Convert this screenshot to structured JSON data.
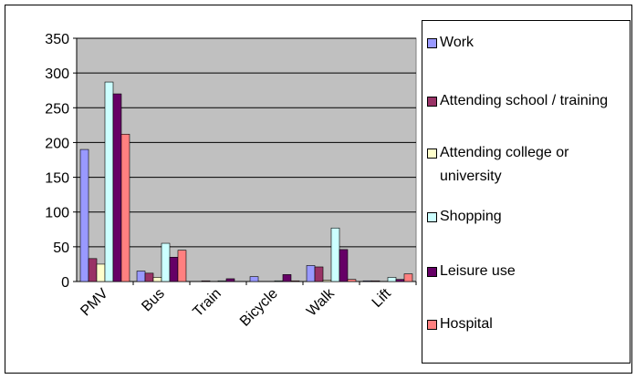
{
  "chart_data": {
    "type": "bar",
    "categories": [
      "PMV",
      "Bus",
      "Train",
      "Bicycle",
      "Walk",
      "Lift"
    ],
    "series": [
      {
        "name": "Work",
        "color": "#9999ff",
        "values": [
          190,
          15,
          0,
          7,
          23,
          1
        ]
      },
      {
        "name": "Attending school / training",
        "color": "#993366",
        "values": [
          33,
          12,
          1,
          0,
          21,
          1
        ]
      },
      {
        "name": "Attending college or university",
        "color": "#ffffcc",
        "values": [
          25,
          6,
          0,
          0,
          2,
          0
        ]
      },
      {
        "name": "Shopping",
        "color": "#ccffff",
        "values": [
          287,
          55,
          1,
          1,
          77,
          6
        ]
      },
      {
        "name": "Leisure use",
        "color": "#660066",
        "values": [
          270,
          35,
          4,
          10,
          46,
          3
        ]
      },
      {
        "name": "Hospital",
        "color": "#ff8080",
        "values": [
          212,
          45,
          0,
          1,
          3,
          11
        ]
      }
    ],
    "ylim": [
      0,
      350
    ],
    "yticks": [
      0,
      50,
      100,
      150,
      200,
      250,
      300,
      350
    ],
    "grid": true,
    "plot_background": "#c0c0c0",
    "legend": "right"
  }
}
